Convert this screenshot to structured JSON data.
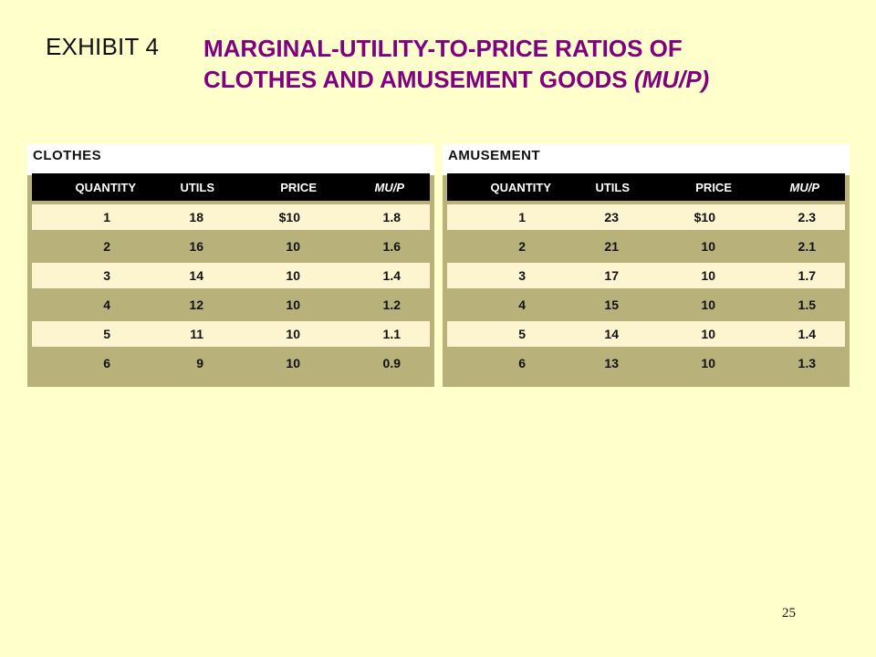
{
  "exhibit_label": "EXHIBIT 4",
  "title_line1": "MARGINAL-UTILITY-TO-PRICE RATIOS OF",
  "title_line2": "CLOTHES AND AMUSEMENT GOODS",
  "title_suffix": "(MU/P)",
  "colors": {
    "background": "#ffffcc",
    "title": "#800080",
    "table_dark": "#b8b27a",
    "table_light": "#fdf5cf",
    "table_header": "#000000"
  },
  "clothes": {
    "label": "CLOTHES",
    "headers": [
      "QUANTITY",
      "UTILS",
      "PRICE",
      "MU/P"
    ],
    "rows": [
      [
        "1",
        "18",
        "$10",
        "1.8"
      ],
      [
        "2",
        "16",
        "10",
        "1.6"
      ],
      [
        "3",
        "14",
        "10",
        "1.4"
      ],
      [
        "4",
        "12",
        "10",
        "1.2"
      ],
      [
        "5",
        "11",
        "10",
        "1.1"
      ],
      [
        "6",
        "9",
        "10",
        "0.9"
      ]
    ]
  },
  "amusement": {
    "label": "AMUSEMENT",
    "headers": [
      "QUANTITY",
      "UTILS",
      "PRICE",
      "MU/P"
    ],
    "rows": [
      [
        "1",
        "23",
        "$10",
        "2.3"
      ],
      [
        "2",
        "21",
        "10",
        "2.1"
      ],
      [
        "3",
        "17",
        "10",
        "1.7"
      ],
      [
        "4",
        "15",
        "10",
        "1.5"
      ],
      [
        "5",
        "14",
        "10",
        "1.4"
      ],
      [
        "6",
        "13",
        "10",
        "1.3"
      ]
    ]
  },
  "page_number": "25"
}
